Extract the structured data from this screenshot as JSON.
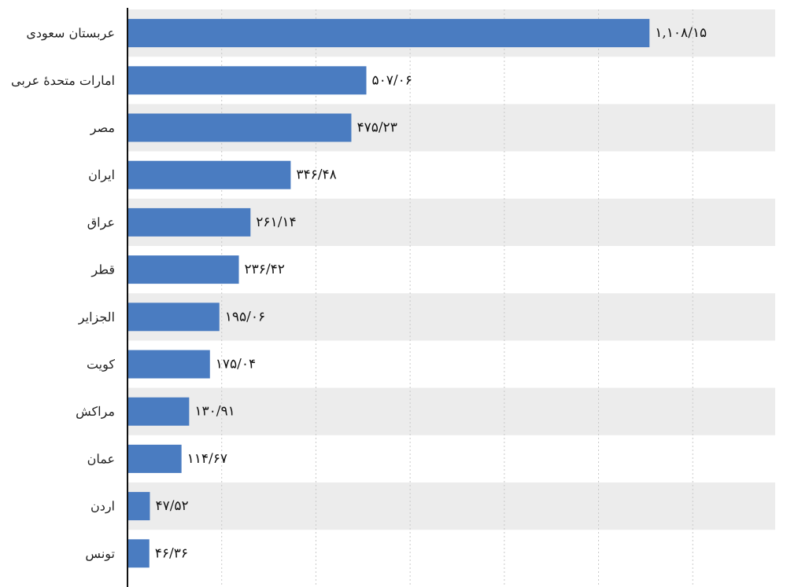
{
  "chart_data": {
    "type": "bar",
    "orientation": "horizontal",
    "title": "",
    "xlabel": "",
    "ylabel": "",
    "categories": [
      "عربستان سعودی",
      "امارات متحدهٔ عربی",
      "مصر",
      "ایران",
      "عراق",
      "قطر",
      "الجزایر",
      "کویت",
      "مراکش",
      "عمان",
      "اردن",
      "تونس"
    ],
    "values": [
      1108.15,
      507.06,
      475.23,
      346.48,
      261.14,
      236.42,
      195.06,
      175.04,
      130.91,
      114.67,
      47.52,
      46.36
    ],
    "value_labels": [
      "۱,۱۰۸/۱۵",
      "۵۰۷/۰۶",
      "۴۷۵/۲۳",
      "۳۴۶/۴۸",
      "۲۶۱/۱۴",
      "۲۳۶/۴۲",
      "۱۹۵/۰۶",
      "۱۷۵/۰۴",
      "۱۳۰/۹۱",
      "۱۱۴/۶۷",
      "۴۷/۵۲",
      "۴۶/۳۶"
    ],
    "xlim": [
      0,
      1375
    ],
    "grid": true,
    "legend": "none",
    "bar_color": "#4a7cc1",
    "band_color": "#ececec",
    "grid_color": "#c9c9c9"
  }
}
